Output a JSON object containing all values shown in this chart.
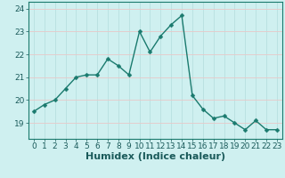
{
  "x": [
    0,
    1,
    2,
    3,
    4,
    5,
    6,
    7,
    8,
    9,
    10,
    11,
    12,
    13,
    14,
    15,
    16,
    17,
    18,
    19,
    20,
    21,
    22,
    23
  ],
  "y": [
    19.5,
    19.8,
    20.0,
    20.5,
    21.0,
    21.1,
    21.1,
    21.8,
    21.5,
    21.1,
    23.0,
    22.1,
    22.8,
    23.3,
    23.7,
    20.2,
    19.6,
    19.2,
    19.3,
    19.0,
    18.7,
    19.1,
    18.7,
    18.7
  ],
  "line_color": "#1a7a6e",
  "marker": "D",
  "marker_size": 2.5,
  "line_width": 1.0,
  "bg_color": "#cff0f0",
  "grid_color_v": "#b8e0e0",
  "grid_color_h": "#e8c8c8",
  "xlabel": "Humidex (Indice chaleur)",
  "xlabel_fontsize": 8,
  "ylim": [
    18.3,
    24.3
  ],
  "yticks": [
    19,
    20,
    21,
    22,
    23,
    24
  ],
  "xticks": [
    0,
    1,
    2,
    3,
    4,
    5,
    6,
    7,
    8,
    9,
    10,
    11,
    12,
    13,
    14,
    15,
    16,
    17,
    18,
    19,
    20,
    21,
    22,
    23
  ],
  "tick_fontsize": 6.5,
  "spine_color": "#1a7a6e"
}
